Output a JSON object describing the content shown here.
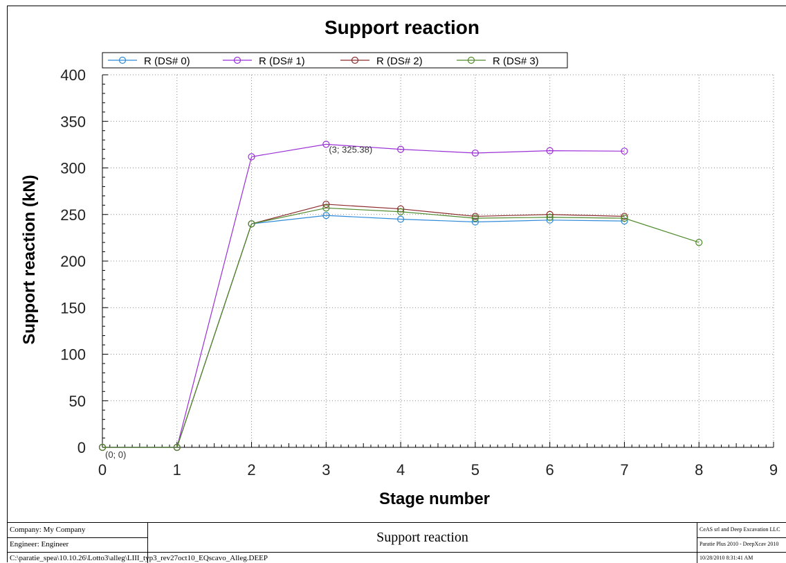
{
  "chart_data": {
    "type": "line",
    "title": "Support reaction",
    "xlabel": "Stage number",
    "ylabel": "Support reaction (kN)",
    "xlim": [
      0,
      9
    ],
    "ylim": [
      0,
      400
    ],
    "xticks": [
      "0",
      "1",
      "2",
      "3",
      "4",
      "5",
      "6",
      "7",
      "8",
      "9"
    ],
    "yticks": [
      "0",
      "50",
      "100",
      "150",
      "200",
      "250",
      "300",
      "350",
      "400"
    ],
    "grid": true,
    "legend_position": "top",
    "series": [
      {
        "name": "R (DS# 0)",
        "color": "#2e8ad8",
        "x": [
          0,
          1,
          2,
          3,
          4,
          5,
          6,
          7
        ],
        "y": [
          0,
          0,
          240,
          249,
          245,
          242,
          244,
          243
        ]
      },
      {
        "name": "R (DS# 1)",
        "color": "#9a2fd6",
        "x": [
          0,
          1,
          2,
          3,
          4,
          5,
          6,
          7
        ],
        "y": [
          0,
          0,
          312,
          325.38,
          320,
          316,
          318.5,
          318
        ]
      },
      {
        "name": "R (DS# 2)",
        "color": "#8b2a2a",
        "x": [
          0,
          1,
          2,
          3,
          4,
          5,
          6,
          7
        ],
        "y": [
          0,
          0,
          240,
          261,
          256,
          248,
          250,
          248
        ]
      },
      {
        "name": "R (DS# 3)",
        "color": "#4e8a2a",
        "x": [
          0,
          1,
          2,
          3,
          4,
          5,
          6,
          7,
          8
        ],
        "y": [
          0,
          0,
          240,
          257,
          253,
          246,
          247,
          246,
          220
        ]
      }
    ],
    "annotations": [
      {
        "text": "(0; 0)",
        "x": 0,
        "y": 0
      },
      {
        "text": "(3; 325.38)",
        "x": 3,
        "y": 325.38
      }
    ]
  },
  "footer": {
    "company": "Company: My Company",
    "engineer": "Engineer: Engineer",
    "center_title": "Support reaction",
    "right_top": "CeAS srl and Deep Excavation LLC",
    "right_mid": "Paratie Plus 2010 - DeepXcav 2010",
    "path": "C:\\paratie_spea\\10.10.26\\Lotto3\\alleg\\LIII_typ3_rev27oct10_EQscavo_Alleg.DEEP",
    "timestamp": "10/28/2010 8:31:41 AM"
  }
}
